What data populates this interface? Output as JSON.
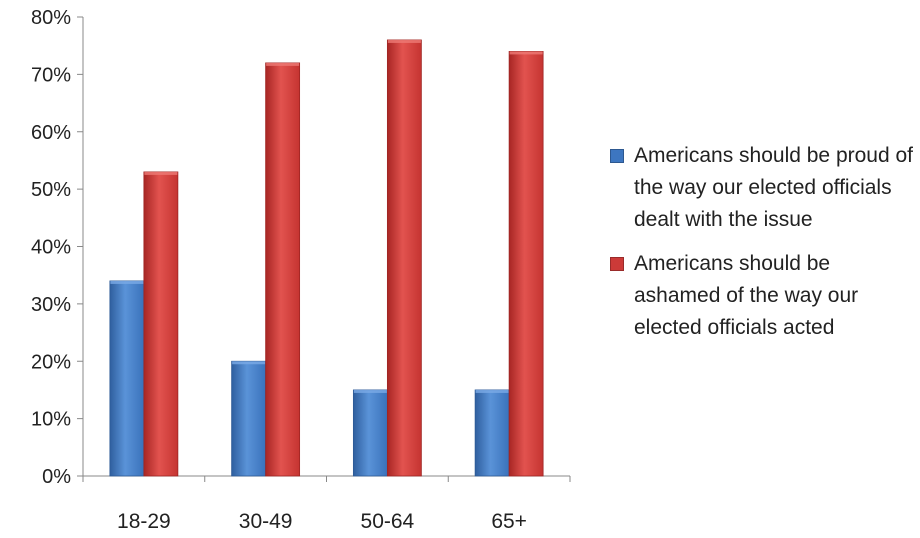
{
  "colors": {
    "series_proud": "#3d76c0",
    "series_ashamed": "#cc3a38"
  },
  "chart_data": {
    "type": "bar",
    "categories": [
      "18-29",
      "30-49",
      "50-64",
      "65+"
    ],
    "series": [
      {
        "name": "Americans should be proud of the way our elected officials dealt with the issue",
        "values": [
          34,
          20,
          15,
          15
        ]
      },
      {
        "name": "Americans should be ashamed of the way our elected officials acted",
        "values": [
          53,
          72,
          76,
          74
        ]
      }
    ],
    "ylim": [
      0,
      80
    ],
    "yticks": [
      "0%",
      "10%",
      "20%",
      "30%",
      "40%",
      "50%",
      "60%",
      "70%",
      "80%"
    ],
    "xlabel": "",
    "ylabel": "",
    "grid": false,
    "legend_position": "right"
  }
}
